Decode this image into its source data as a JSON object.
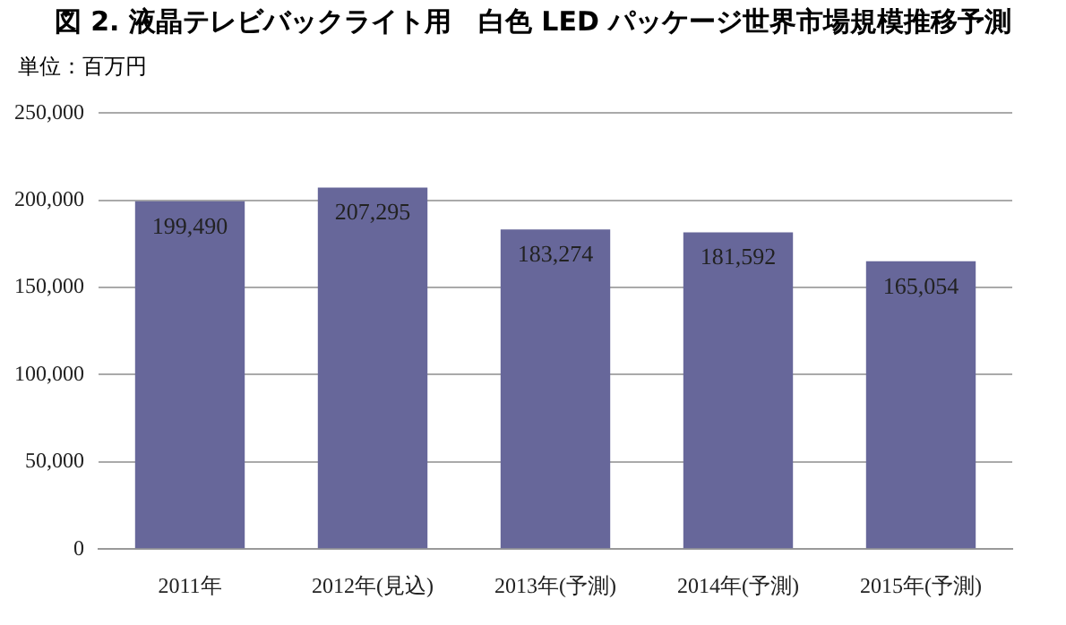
{
  "chart_data": {
    "type": "bar",
    "title": "図 2. 液晶テレビバックライト用　白色 LED パッケージ世界市場規模推移予測",
    "annotations": [
      "単位：百万円"
    ],
    "categories": [
      "2011年",
      "2012年(見込)",
      "2013年(予測)",
      "2014年(予測)",
      "2015年(予測)"
    ],
    "values": [
      199490,
      207295,
      183274,
      181592,
      165054
    ],
    "value_labels": [
      "199,490",
      "207,295",
      "183,274",
      "181,592",
      "165,054"
    ],
    "color": "#67679a",
    "ylim": [
      0,
      250000
    ],
    "yticks": [
      {
        "value": 0,
        "label": "0"
      },
      {
        "value": 50000,
        "label": "50,000"
      },
      {
        "value": 100000,
        "label": "100,000"
      },
      {
        "value": 150000,
        "label": "150,000"
      },
      {
        "value": 200000,
        "label": "200,000"
      },
      {
        "value": 250000,
        "label": "250,000"
      }
    ],
    "grid": "y"
  }
}
